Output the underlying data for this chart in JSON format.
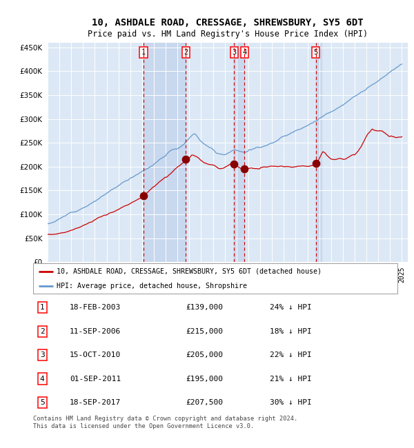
{
  "title": "10, ASHDALE ROAD, CRESSAGE, SHREWSBURY, SY5 6DT",
  "subtitle": "Price paid vs. HM Land Registry's House Price Index (HPI)",
  "title_fontsize": 10,
  "subtitle_fontsize": 8.5,
  "ylim": [
    0,
    460000
  ],
  "xlim_start": 1995.0,
  "xlim_end": 2025.5,
  "background_color": "#ffffff",
  "plot_bg_color": "#dce8f5",
  "grid_color": "#ffffff",
  "legend_label_red": "10, ASHDALE ROAD, CRESSAGE, SHREWSBURY, SY5 6DT (detached house)",
  "legend_label_blue": "HPI: Average price, detached house, Shropshire",
  "footer": "Contains HM Land Registry data © Crown copyright and database right 2024.\nThis data is licensed under the Open Government Licence v3.0.",
  "transactions": [
    {
      "num": 1,
      "date": "18-FEB-2003",
      "x": 2003.12,
      "price": 139000,
      "pct": "24%",
      "dir": "↓"
    },
    {
      "num": 2,
      "date": "11-SEP-2006",
      "x": 2006.7,
      "price": 215000,
      "pct": "18%",
      "dir": "↓"
    },
    {
      "num": 3,
      "date": "15-OCT-2010",
      "x": 2010.79,
      "price": 205000,
      "pct": "22%",
      "dir": "↓"
    },
    {
      "num": 4,
      "date": "01-SEP-2011",
      "x": 2011.67,
      "price": 195000,
      "pct": "21%",
      "dir": "↓"
    },
    {
      "num": 5,
      "date": "18-SEP-2017",
      "x": 2017.71,
      "price": 207500,
      "pct": "30%",
      "dir": "↓"
    }
  ],
  "red_color": "#cc0000",
  "blue_color": "#6699cc",
  "red_dot_color": "#880000",
  "vline_color": "#cc0000",
  "shade_color": "#c8d8ee",
  "table_rows": [
    {
      "num": 1,
      "date": "18-FEB-2003",
      "price": "£139,000",
      "info": "24% ↓ HPI"
    },
    {
      "num": 2,
      "date": "11-SEP-2006",
      "price": "£215,000",
      "info": "18% ↓ HPI"
    },
    {
      "num": 3,
      "date": "15-OCT-2010",
      "price": "£205,000",
      "info": "22% ↓ HPI"
    },
    {
      "num": 4,
      "date": "01-SEP-2011",
      "price": "£195,000",
      "info": "21% ↓ HPI"
    },
    {
      "num": 5,
      "date": "18-SEP-2017",
      "price": "£207,500",
      "info": "30% ↓ HPI"
    }
  ]
}
